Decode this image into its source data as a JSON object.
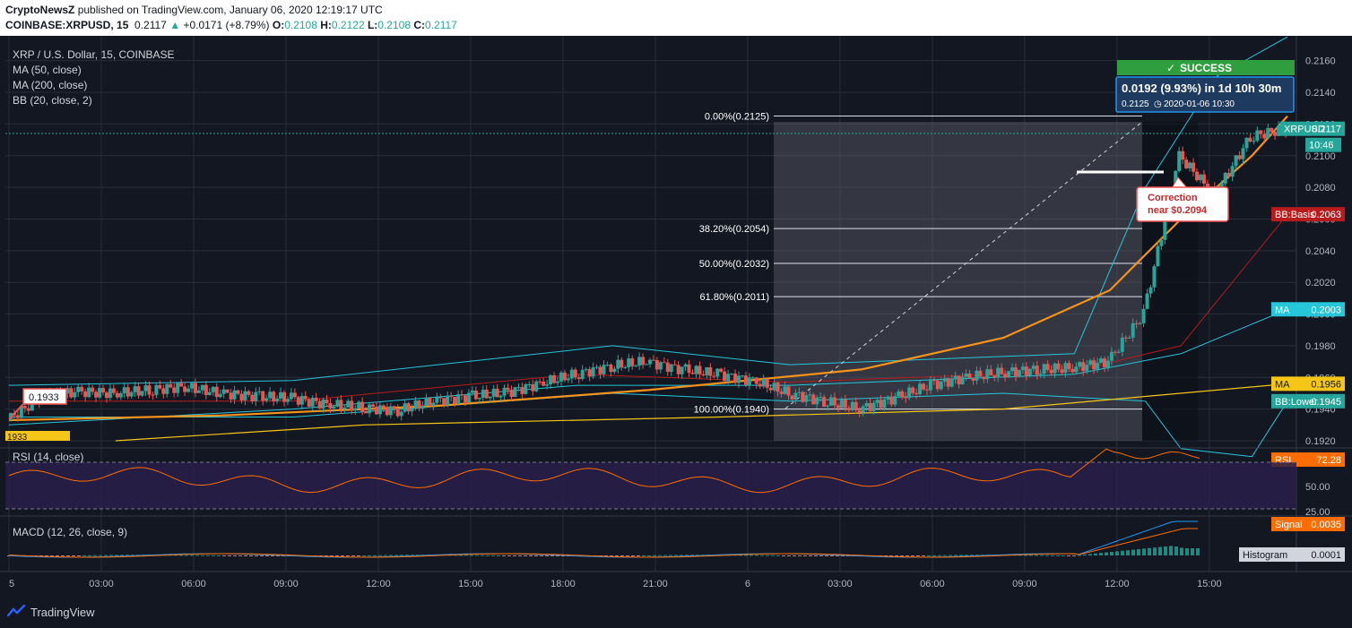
{
  "header": {
    "author": "CryptoNewsZ",
    "published_text": "published on TradingView.com, January 06, 2020 12:19:17 UTC",
    "symbol_line": "COINBASE:XRPUSD, 15",
    "last": "0.2117",
    "change": "+0.0171 (+8.79%)",
    "o_label": "O:",
    "o": "0.2108",
    "h_label": "H:",
    "h": "0.2122",
    "l_label": "L:",
    "l": "0.2108",
    "c_label": "C:",
    "c": "0.2117"
  },
  "legend": {
    "title": "XRP / U.S. Dollar, 15, COINBASE",
    "ma50": "MA (50, close)",
    "ma200": "MA (200, close)",
    "bb": "BB (20, close, 2)",
    "rsi": "RSI (14, close)",
    "macd": "MACD (12, 26, close, 9)"
  },
  "colors": {
    "background": "#131722",
    "grid": "#2a2e39",
    "up": "#26a69a",
    "down": "#ef5350",
    "ma50": "#f7931a",
    "ma200": "#f5c518",
    "bb_basis": "#b71c1c",
    "bb_band": "#26c6da",
    "rsi_line": "#ff6d00",
    "rsi_band": "#2a1f4a",
    "macd_line": "#2196f3",
    "signal_line": "#ff6d00",
    "success": "#2e9e3e",
    "info_box": "#1565c0"
  },
  "chart_data": [
    {
      "type": "candlestick",
      "title": "XRP / U.S. Dollar, 15, COINBASE",
      "price_axis": [
        "0.2160",
        "0.2140",
        "0.2120",
        "0.2100",
        "0.2080",
        "0.2060",
        "0.2040",
        "0.2020",
        "0.2000",
        "0.1980",
        "0.1960",
        "0.1940",
        "0.1920"
      ],
      "ylim": [
        0.192,
        0.217
      ],
      "time_axis": [
        "5",
        "03:00",
        "06:00",
        "09:00",
        "12:00",
        "15:00",
        "18:00",
        "21:00",
        "6",
        "03:00",
        "06:00",
        "09:00",
        "12:00",
        "15:00"
      ],
      "xlim": [
        0,
        36
      ],
      "grid": true,
      "series": [
        {
          "name": "XRPUSD",
          "close_label": "XRPUSD",
          "close_value": "0.2117",
          "countdown": "10:46",
          "closes": [
            [
              0,
              0.1933
            ],
            [
              1,
              0.1948
            ],
            [
              2,
              0.1951
            ],
            [
              3,
              0.195
            ],
            [
              4,
              0.1952
            ],
            [
              5,
              0.1954
            ],
            [
              6,
              0.195
            ],
            [
              7,
              0.1948
            ],
            [
              8,
              0.1947
            ],
            [
              9,
              0.1943
            ],
            [
              10,
              0.1941
            ],
            [
              11,
              0.1939
            ],
            [
              12,
              0.1945
            ],
            [
              13,
              0.1948
            ],
            [
              14,
              0.195
            ],
            [
              15,
              0.1956
            ],
            [
              16,
              0.1962
            ],
            [
              17,
              0.1967
            ],
            [
              18,
              0.197
            ],
            [
              19,
              0.1965
            ],
            [
              20,
              0.1962
            ],
            [
              21,
              0.1958
            ],
            [
              22,
              0.195
            ],
            [
              23,
              0.1945
            ],
            [
              24,
              0.194
            ],
            [
              25,
              0.1947
            ],
            [
              26,
              0.1955
            ],
            [
              27,
              0.196
            ],
            [
              28,
              0.1963
            ],
            [
              29,
              0.1965
            ],
            [
              30,
              0.1966
            ],
            [
              31,
              0.197
            ],
            [
              32,
              0.2
            ],
            [
              33,
              0.21
            ],
            [
              34,
              0.2075
            ],
            [
              35,
              0.2112
            ],
            [
              36,
              0.2117
            ]
          ]
        },
        {
          "name": "MA",
          "close_label": "MA",
          "close_value": "0.2003"
        },
        {
          "name": "MA",
          "close_label": "MA",
          "close_value": "0.1956"
        },
        {
          "name": "BB:Basis",
          "close_label": "BB:Basis",
          "close_value": "0.2063"
        },
        {
          "name": "BB:Lower",
          "close_label": "BB:Lower",
          "close_value": "0.1945"
        }
      ],
      "fibonacci": [
        {
          "label": "0.00%(0.2125)",
          "value": 0.2125
        },
        {
          "label": "38.20%(0.2054)",
          "value": 0.2054
        },
        {
          "label": "50.00%(0.2032)",
          "value": 0.2032
        },
        {
          "label": "61.80%(0.2011)",
          "value": 0.2011
        },
        {
          "label": "100.00%(0.1940)",
          "value": 0.194
        }
      ],
      "annotations": {
        "start_marker": "0.1933",
        "start_axis_label": "1933",
        "success": "SUCCESS",
        "move": "0.0192 (9.93%) in 1d 10h 30m",
        "move_detail_price": "0.2125",
        "move_detail_time": "2020-01-06  10:30",
        "correction_line1": "Correction",
        "correction_line2": "near $0.2094"
      }
    },
    {
      "type": "line",
      "title": "RSI (14, close)",
      "price_axis": [
        "50.00",
        "25.00"
      ],
      "ylim": [
        20,
        80
      ],
      "bands": [
        30,
        70
      ],
      "series": [
        {
          "name": "RSI",
          "close_label": "RSI",
          "close_value": "72.28"
        }
      ]
    },
    {
      "type": "line",
      "title": "MACD (12, 26, close, 9)",
      "series": [
        {
          "name": "Signal",
          "close_label": "Signal",
          "close_value": "0.0035"
        },
        {
          "name": "Histogram",
          "close_label": "Histogram",
          "close_value": "0.0001"
        }
      ]
    }
  ],
  "footer": {
    "brand": "TradingView"
  }
}
